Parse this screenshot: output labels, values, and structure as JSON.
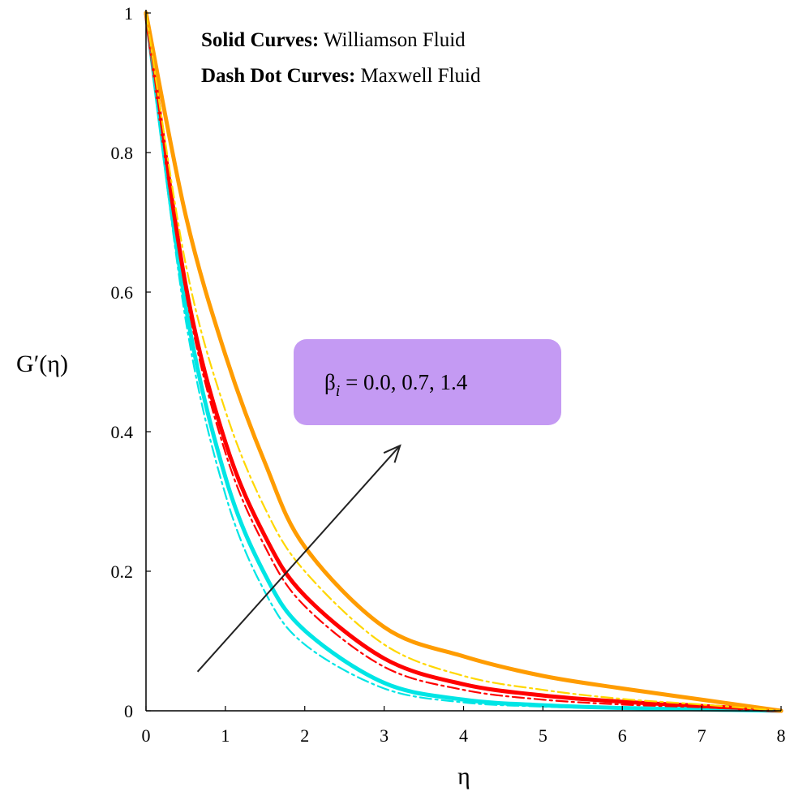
{
  "chart_data": {
    "type": "line",
    "title": "",
    "xlabel": "η",
    "ylabel": "G′(η)",
    "xlim": [
      0,
      8
    ],
    "ylim": [
      0,
      1
    ],
    "xticks": [
      "0",
      "1",
      "2",
      "3",
      "4",
      "5",
      "6",
      "7",
      "8"
    ],
    "yticks": [
      "0",
      "0.2",
      "0.4",
      "0.6",
      "0.8",
      "1"
    ],
    "grid": false,
    "legend_lines": [
      {
        "bold": "Solid Curves:",
        "normal": " Williamson Fluid"
      },
      {
        "bold": "Dash Dot Curves:",
        "normal": " Maxwell Fluid"
      }
    ],
    "annotation": {
      "symbol": "β",
      "subscript": "i",
      "text": " = 0.0, 0.7, 1.4",
      "box_color": "#c49af3",
      "arrow": {
        "from": [
          0.65,
          0.056
        ],
        "to": [
          3.2,
          0.38
        ]
      }
    },
    "series": [
      {
        "style": "solid",
        "color": "#00e5e5",
        "x": [
          0,
          0.5,
          1,
          1.5,
          2,
          3,
          4,
          5,
          6,
          7,
          8
        ],
        "y": [
          1,
          0.58,
          0.335,
          0.195,
          0.115,
          0.04,
          0.016,
          0.008,
          0.004,
          0.002,
          0
        ]
      },
      {
        "style": "solid",
        "color": "#ff0000",
        "x": [
          0,
          0.5,
          1,
          1.5,
          2,
          3,
          4,
          5,
          6,
          7,
          8
        ],
        "y": [
          1,
          0.61,
          0.385,
          0.25,
          0.165,
          0.075,
          0.038,
          0.022,
          0.013,
          0.007,
          0
        ]
      },
      {
        "style": "solid",
        "color": "#ff9c00",
        "x": [
          0,
          0.5,
          1,
          1.5,
          2,
          3,
          4,
          5,
          6,
          7,
          8
        ],
        "y": [
          1,
          0.71,
          0.51,
          0.355,
          0.235,
          0.12,
          0.078,
          0.05,
          0.032,
          0.016,
          0
        ]
      },
      {
        "style": "dashdot",
        "color": "#00e5e5",
        "x": [
          0,
          0.5,
          1,
          1.5,
          2,
          3,
          4,
          5,
          6,
          7,
          8
        ],
        "y": [
          1,
          0.56,
          0.31,
          0.17,
          0.095,
          0.032,
          0.012,
          0.006,
          0.003,
          0.001,
          0
        ]
      },
      {
        "style": "dashdot",
        "color": "#ff0000",
        "x": [
          0,
          0.5,
          1,
          1.5,
          2,
          3,
          4,
          5,
          6,
          7,
          8
        ],
        "y": [
          1,
          0.6,
          0.37,
          0.235,
          0.15,
          0.063,
          0.03,
          0.016,
          0.009,
          0.005,
          0
        ]
      },
      {
        "style": "dashdot",
        "color": "#ffd700",
        "x": [
          0,
          0.5,
          1,
          1.5,
          2,
          3,
          4,
          5,
          6,
          7,
          8
        ],
        "y": [
          1,
          0.64,
          0.43,
          0.29,
          0.2,
          0.095,
          0.05,
          0.03,
          0.017,
          0.009,
          0
        ]
      }
    ]
  }
}
